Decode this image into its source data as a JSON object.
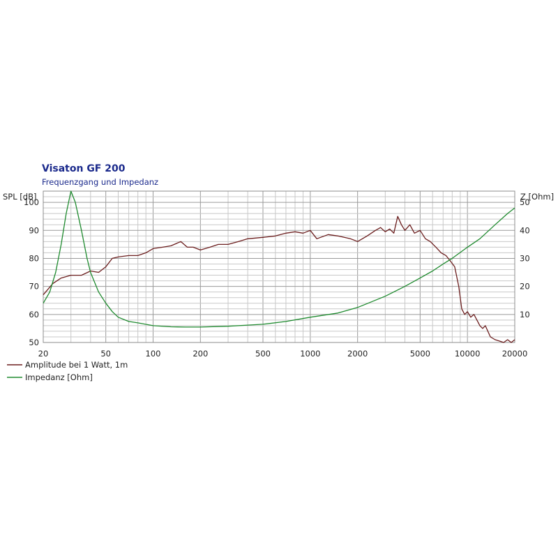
{
  "chart_data": {
    "type": "line",
    "title": "Visaton GF 200",
    "subtitle": "Frequenzgang und Impedanz",
    "xscale": "log",
    "xlim": [
      20,
      20000
    ],
    "x_ticks": [
      20,
      50,
      100,
      200,
      500,
      1000,
      2000,
      5000,
      10000,
      20000
    ],
    "ylabel_left": "SPL [dB]",
    "ylim_left": [
      50,
      104
    ],
    "y_ticks_left": [
      50,
      60,
      70,
      80,
      90,
      100
    ],
    "ylabel_right": "Z [Ohm]",
    "ylim_right": [
      0,
      54
    ],
    "y_ticks_right": [
      10,
      20,
      30,
      40,
      50
    ],
    "grid": true,
    "legend_position": "bottom-left",
    "colors": {
      "amplitude": "#6b1d1d",
      "impedance": "#1e8a2e"
    },
    "series": [
      {
        "name": "Amplitude bei 1 Watt, 1m",
        "axis": "left",
        "x": [
          20,
          23,
          26,
          30,
          35,
          40,
          45,
          50,
          55,
          60,
          70,
          80,
          90,
          100,
          115,
          130,
          150,
          165,
          180,
          200,
          230,
          260,
          300,
          350,
          400,
          500,
          600,
          700,
          800,
          900,
          1000,
          1100,
          1300,
          1500,
          1800,
          2000,
          2300,
          2600,
          2800,
          3000,
          3200,
          3400,
          3600,
          3800,
          4000,
          4300,
          4600,
          5000,
          5400,
          5800,
          6300,
          6800,
          7300,
          7800,
          8300,
          8800,
          9200,
          9600,
          10000,
          10500,
          11000,
          11500,
          12000,
          12500,
          13000,
          14000,
          15000,
          16000,
          17000,
          18000,
          19000,
          20000
        ],
        "values": [
          67,
          71,
          73,
          74,
          74,
          75.5,
          75,
          77,
          80,
          80.5,
          81,
          81,
          82,
          83.5,
          84,
          84.5,
          86,
          84,
          84,
          83,
          84,
          85,
          85,
          86,
          87,
          87.5,
          88,
          89,
          89.5,
          89,
          90,
          87,
          88.5,
          88,
          87,
          86,
          88,
          90,
          91,
          89.5,
          90.5,
          89,
          95,
          92,
          90,
          92,
          89,
          90,
          87,
          86,
          84,
          82,
          81,
          79,
          77,
          70,
          62,
          60,
          61,
          59,
          60,
          58,
          56,
          55,
          56,
          52,
          51,
          50.5,
          50,
          51,
          50,
          51
        ]
      },
      {
        "name": "Impedanz [Ohm]",
        "axis": "right",
        "x": [
          20,
          22,
          24,
          26,
          28,
          30,
          32,
          35,
          38,
          40,
          45,
          50,
          55,
          60,
          70,
          80,
          100,
          130,
          160,
          200,
          300,
          400,
          500,
          700,
          1000,
          1500,
          2000,
          3000,
          4000,
          5000,
          6000,
          7000,
          8000,
          10000,
          12000,
          15000,
          18000,
          20000
        ],
        "values": [
          14,
          18,
          25,
          35,
          46,
          54,
          50,
          40,
          30,
          25,
          18,
          14,
          11,
          9,
          7.5,
          7,
          6,
          5.6,
          5.5,
          5.5,
          5.8,
          6.2,
          6.5,
          7.5,
          9,
          10.5,
          12.5,
          16.5,
          20,
          23,
          25.5,
          28,
          30,
          34,
          37,
          42,
          46,
          48
        ]
      }
    ]
  }
}
